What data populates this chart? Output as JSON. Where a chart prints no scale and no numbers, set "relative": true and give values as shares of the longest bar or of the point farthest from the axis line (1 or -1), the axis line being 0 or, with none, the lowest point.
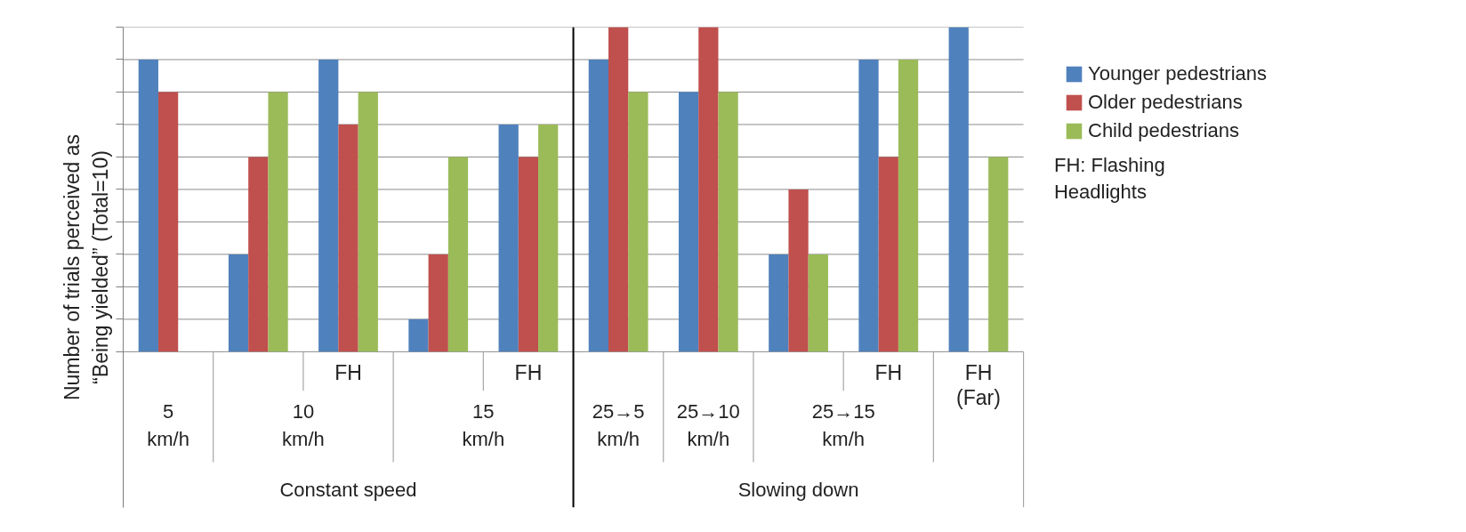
{
  "chart_data": {
    "type": "bar",
    "relative": true,
    "ylabel": "Number of trials perceived as\n“Being yielded” (Total=10)",
    "categories": [
      null,
      null,
      "FH",
      null,
      "FH",
      null,
      null,
      null,
      "FH",
      "FH\n(Far)"
    ],
    "series": [
      {
        "name": "Younger pedestrians",
        "color": "#4f81bd",
        "values": [
          0.9,
          0.3,
          0.9,
          0.1,
          0.7,
          0.9,
          0.8,
          0.3,
          0.9,
          1.0
        ]
      },
      {
        "name": "Older pedestrians",
        "color": "#c0504d",
        "values": [
          0.8,
          0.6,
          0.7,
          0.3,
          0.6,
          1.0,
          1.0,
          0.5,
          0.6,
          0
        ]
      },
      {
        "name": "Child pedestrians",
        "color": "#9bbb59",
        "values": [
          0,
          0.8,
          0.8,
          0.6,
          0.7,
          0.8,
          0.8,
          0.3,
          0.9,
          0.6
        ]
      }
    ],
    "annotations": [
      "5\nkm/h",
      "10\nkm/h",
      "15\nkm/h",
      "25→5\nkm/h",
      "25→10\nkm/h",
      "25→15\nkm/h",
      "Constant speed",
      "Slowing down",
      "FH: Flashing\nHeadlights"
    ],
    "grid": "y",
    "legend": "right"
  }
}
